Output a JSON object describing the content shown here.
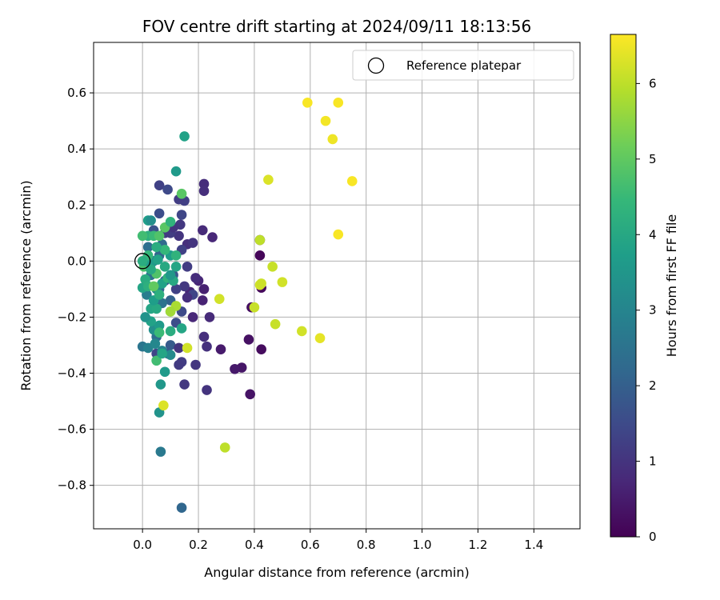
{
  "chart_data": {
    "type": "scatter",
    "title": "FOV centre drift starting at 2024/09/11 18:13:56",
    "xlabel": "Angular distance from reference (arcmin)",
    "ylabel": "Rotation from reference (arcmin)",
    "xlim": [
      -0.175,
      1.565
    ],
    "ylim": [
      -0.955,
      0.78
    ],
    "xticks": [
      0.0,
      0.2,
      0.4,
      0.6,
      0.8,
      1.0,
      1.2,
      1.4
    ],
    "xtick_labels": [
      "0.0",
      "0.2",
      "0.4",
      "0.6",
      "0.8",
      "1.0",
      "1.2",
      "1.4"
    ],
    "yticks": [
      0.6,
      0.4,
      0.2,
      0.0,
      -0.2,
      -0.4,
      -0.6,
      -0.8
    ],
    "ytick_labels": [
      "0.6",
      "0.4",
      "0.2",
      "0.0",
      "−0.2",
      "−0.4",
      "−0.6",
      "−0.8"
    ],
    "grid": true,
    "legend": {
      "placement": "top-right",
      "entries": [
        "Reference platepar"
      ]
    },
    "reference_point": {
      "x": 0.0,
      "y": 0.0
    },
    "colorbar": {
      "label": "Hours from first FF file",
      "range": [
        0,
        6.65
      ],
      "ticks": [
        0,
        1,
        2,
        3,
        4,
        5,
        6
      ],
      "tick_labels": [
        "0",
        "1",
        "2",
        "3",
        "4",
        "5",
        "6"
      ],
      "colormap": "viridis"
    },
    "points": [
      [
        0.42,
        0.075,
        0.05
      ],
      [
        0.42,
        0.02,
        0.1
      ],
      [
        0.425,
        -0.095,
        0.15
      ],
      [
        0.425,
        -0.315,
        0.2
      ],
      [
        0.39,
        -0.165,
        0.25
      ],
      [
        0.38,
        -0.28,
        0.3
      ],
      [
        0.385,
        -0.475,
        0.35
      ],
      [
        0.355,
        -0.38,
        0.4
      ],
      [
        0.33,
        -0.385,
        0.45
      ],
      [
        0.28,
        -0.315,
        0.5
      ],
      [
        0.22,
        -0.1,
        0.6
      ],
      [
        0.215,
        -0.14,
        0.65
      ],
      [
        0.2,
        -0.07,
        0.7
      ],
      [
        0.17,
        -0.11,
        0.7
      ],
      [
        0.18,
        -0.2,
        0.75
      ],
      [
        0.24,
        -0.2,
        0.8
      ],
      [
        0.25,
        0.085,
        0.75
      ],
      [
        0.215,
        0.11,
        0.8
      ],
      [
        0.22,
        -0.27,
        0.9
      ],
      [
        0.23,
        -0.305,
        0.95
      ],
      [
        0.23,
        -0.46,
        1.0
      ],
      [
        0.19,
        -0.37,
        1.05
      ],
      [
        0.15,
        -0.44,
        1.1
      ],
      [
        0.14,
        -0.36,
        1.2
      ],
      [
        0.13,
        -0.37,
        1.15
      ],
      [
        0.19,
        -0.06,
        0.85
      ],
      [
        0.16,
        0.06,
        0.9
      ],
      [
        0.18,
        0.065,
        1.0
      ],
      [
        0.22,
        0.275,
        0.85
      ],
      [
        0.22,
        0.25,
        0.9
      ],
      [
        0.15,
        0.215,
        1.25
      ],
      [
        0.13,
        0.22,
        1.2
      ],
      [
        0.14,
        0.165,
        1.4
      ],
      [
        0.135,
        0.13,
        1.1
      ],
      [
        0.13,
        0.09,
        1.0
      ],
      [
        0.06,
        0.27,
        1.3
      ],
      [
        0.09,
        0.255,
        1.5
      ],
      [
        0.06,
        0.17,
        1.6
      ],
      [
        0.1,
        0.1,
        1.2
      ],
      [
        0.11,
        0.12,
        1.0
      ],
      [
        0.04,
        0.11,
        1.7
      ],
      [
        0.08,
        0.1,
        1.15
      ],
      [
        0.14,
        0.04,
        1.3
      ],
      [
        0.16,
        -0.02,
        1.2
      ],
      [
        0.15,
        -0.09,
        1.1
      ],
      [
        0.12,
        -0.1,
        1.3
      ],
      [
        0.18,
        -0.12,
        1.4
      ],
      [
        0.16,
        -0.13,
        0.9
      ],
      [
        0.14,
        -0.18,
        1.5
      ],
      [
        0.12,
        -0.22,
        1.6
      ],
      [
        0.05,
        -0.33,
        1.4
      ],
      [
        0.09,
        -0.33,
        1.7
      ],
      [
        0.1,
        -0.3,
        1.9
      ],
      [
        0.13,
        -0.31,
        1.0
      ],
      [
        0.11,
        -0.05,
        1.8
      ],
      [
        0.08,
        -0.07,
        2.0
      ],
      [
        0.06,
        -0.1,
        2.2
      ],
      [
        0.1,
        -0.14,
        2.1
      ],
      [
        0.07,
        0.06,
        2.3
      ],
      [
        0.02,
        0.05,
        2.4
      ],
      [
        0.04,
        0.0,
        2.6
      ],
      [
        0.06,
        0.02,
        2.2
      ],
      [
        0.03,
        -0.05,
        2.5
      ],
      [
        0.015,
        -0.12,
        2.8
      ],
      [
        0.0,
        -0.305,
        2.6
      ],
      [
        0.02,
        -0.31,
        2.9
      ],
      [
        0.05,
        -0.27,
        2.4
      ],
      [
        0.07,
        -0.15,
        2.5
      ],
      [
        0.14,
        -0.88,
        2.2
      ],
      [
        0.065,
        -0.68,
        2.7
      ],
      [
        0.06,
        -0.54,
        3.4
      ],
      [
        0.065,
        -0.44,
        3.5
      ],
      [
        0.08,
        -0.395,
        3.6
      ],
      [
        0.1,
        -0.335,
        3.2
      ],
      [
        0.07,
        -0.32,
        3.0
      ],
      [
        0.045,
        -0.295,
        3.1
      ],
      [
        0.04,
        -0.245,
        3.3
      ],
      [
        0.06,
        -0.23,
        3.6
      ],
      [
        0.03,
        -0.215,
        3.8
      ],
      [
        0.01,
        -0.2,
        3.4
      ],
      [
        0.03,
        -0.17,
        3.9
      ],
      [
        0.05,
        -0.17,
        4.0
      ],
      [
        0.04,
        -0.14,
        3.7
      ],
      [
        0.0,
        -0.095,
        3.9
      ],
      [
        0.01,
        -0.065,
        4.1
      ],
      [
        0.02,
        -0.09,
        4.2
      ],
      [
        0.05,
        -0.1,
        3.2
      ],
      [
        0.07,
        -0.08,
        3.8
      ],
      [
        0.09,
        -0.06,
        4.3
      ],
      [
        0.11,
        -0.07,
        4.0
      ],
      [
        0.1,
        -0.05,
        3.5
      ],
      [
        0.12,
        -0.02,
        3.9
      ],
      [
        0.1,
        0.02,
        3.7
      ],
      [
        0.12,
        0.02,
        4.3
      ],
      [
        0.08,
        0.04,
        4.4
      ],
      [
        0.05,
        0.05,
        4.1
      ],
      [
        0.02,
        0.09,
        4.2
      ],
      [
        0.0,
        0.09,
        4.6
      ],
      [
        0.04,
        0.09,
        4.5
      ],
      [
        0.06,
        0.09,
        4.8
      ],
      [
        0.08,
        0.12,
        4.9
      ],
      [
        0.1,
        0.14,
        4.3
      ],
      [
        0.02,
        0.145,
        3.7
      ],
      [
        0.03,
        0.145,
        3.3
      ],
      [
        0.005,
        -0.02,
        4.7
      ],
      [
        0.01,
        0.0,
        4.0
      ],
      [
        0.03,
        -0.01,
        3.6
      ],
      [
        0.02,
        0.02,
        4.4
      ],
      [
        0.15,
        0.445,
        3.8
      ],
      [
        0.12,
        0.32,
        3.6
      ],
      [
        0.14,
        0.24,
        4.9
      ],
      [
        0.14,
        -0.24,
        3.9
      ],
      [
        0.1,
        -0.25,
        4.1
      ],
      [
        0.06,
        -0.255,
        4.5
      ],
      [
        0.05,
        -0.355,
        4.6
      ],
      [
        0.07,
        -0.33,
        3.9
      ],
      [
        0.1,
        -0.18,
        4.7
      ],
      [
        0.05,
        -0.045,
        4.8
      ],
      [
        0.04,
        -0.09,
        5.0
      ],
      [
        0.06,
        -0.12,
        4.2
      ],
      [
        0.0,
        0.0,
        4.1
      ],
      [
        0.03,
        -0.03,
        4.0
      ],
      [
        0.055,
        0.005,
        3.8
      ],
      [
        0.08,
        -0.02,
        4.0
      ],
      [
        0.12,
        -0.16,
        5.8
      ],
      [
        0.16,
        -0.31,
        6.2
      ],
      [
        0.075,
        -0.515,
        6.3
      ],
      [
        0.1,
        -0.18,
        5.7
      ],
      [
        0.275,
        -0.135,
        6.2
      ],
      [
        0.295,
        -0.665,
        6.0
      ],
      [
        0.4,
        -0.165,
        6.1
      ],
      [
        0.42,
        -0.085,
        6.2
      ],
      [
        0.465,
        -0.02,
        6.1
      ],
      [
        0.5,
        -0.075,
        6.2
      ],
      [
        0.475,
        -0.225,
        6.1
      ],
      [
        0.42,
        0.075,
        6.0
      ],
      [
        0.425,
        -0.08,
        6.15
      ],
      [
        0.45,
        0.29,
        6.3
      ],
      [
        0.57,
        -0.25,
        6.2
      ],
      [
        0.635,
        -0.275,
        6.4
      ],
      [
        0.59,
        0.565,
        6.6
      ],
      [
        0.7,
        0.565,
        6.6
      ],
      [
        0.655,
        0.5,
        6.55
      ],
      [
        0.68,
        0.435,
        6.5
      ],
      [
        0.75,
        0.285,
        6.6
      ],
      [
        0.7,
        0.095,
        6.6
      ]
    ]
  }
}
